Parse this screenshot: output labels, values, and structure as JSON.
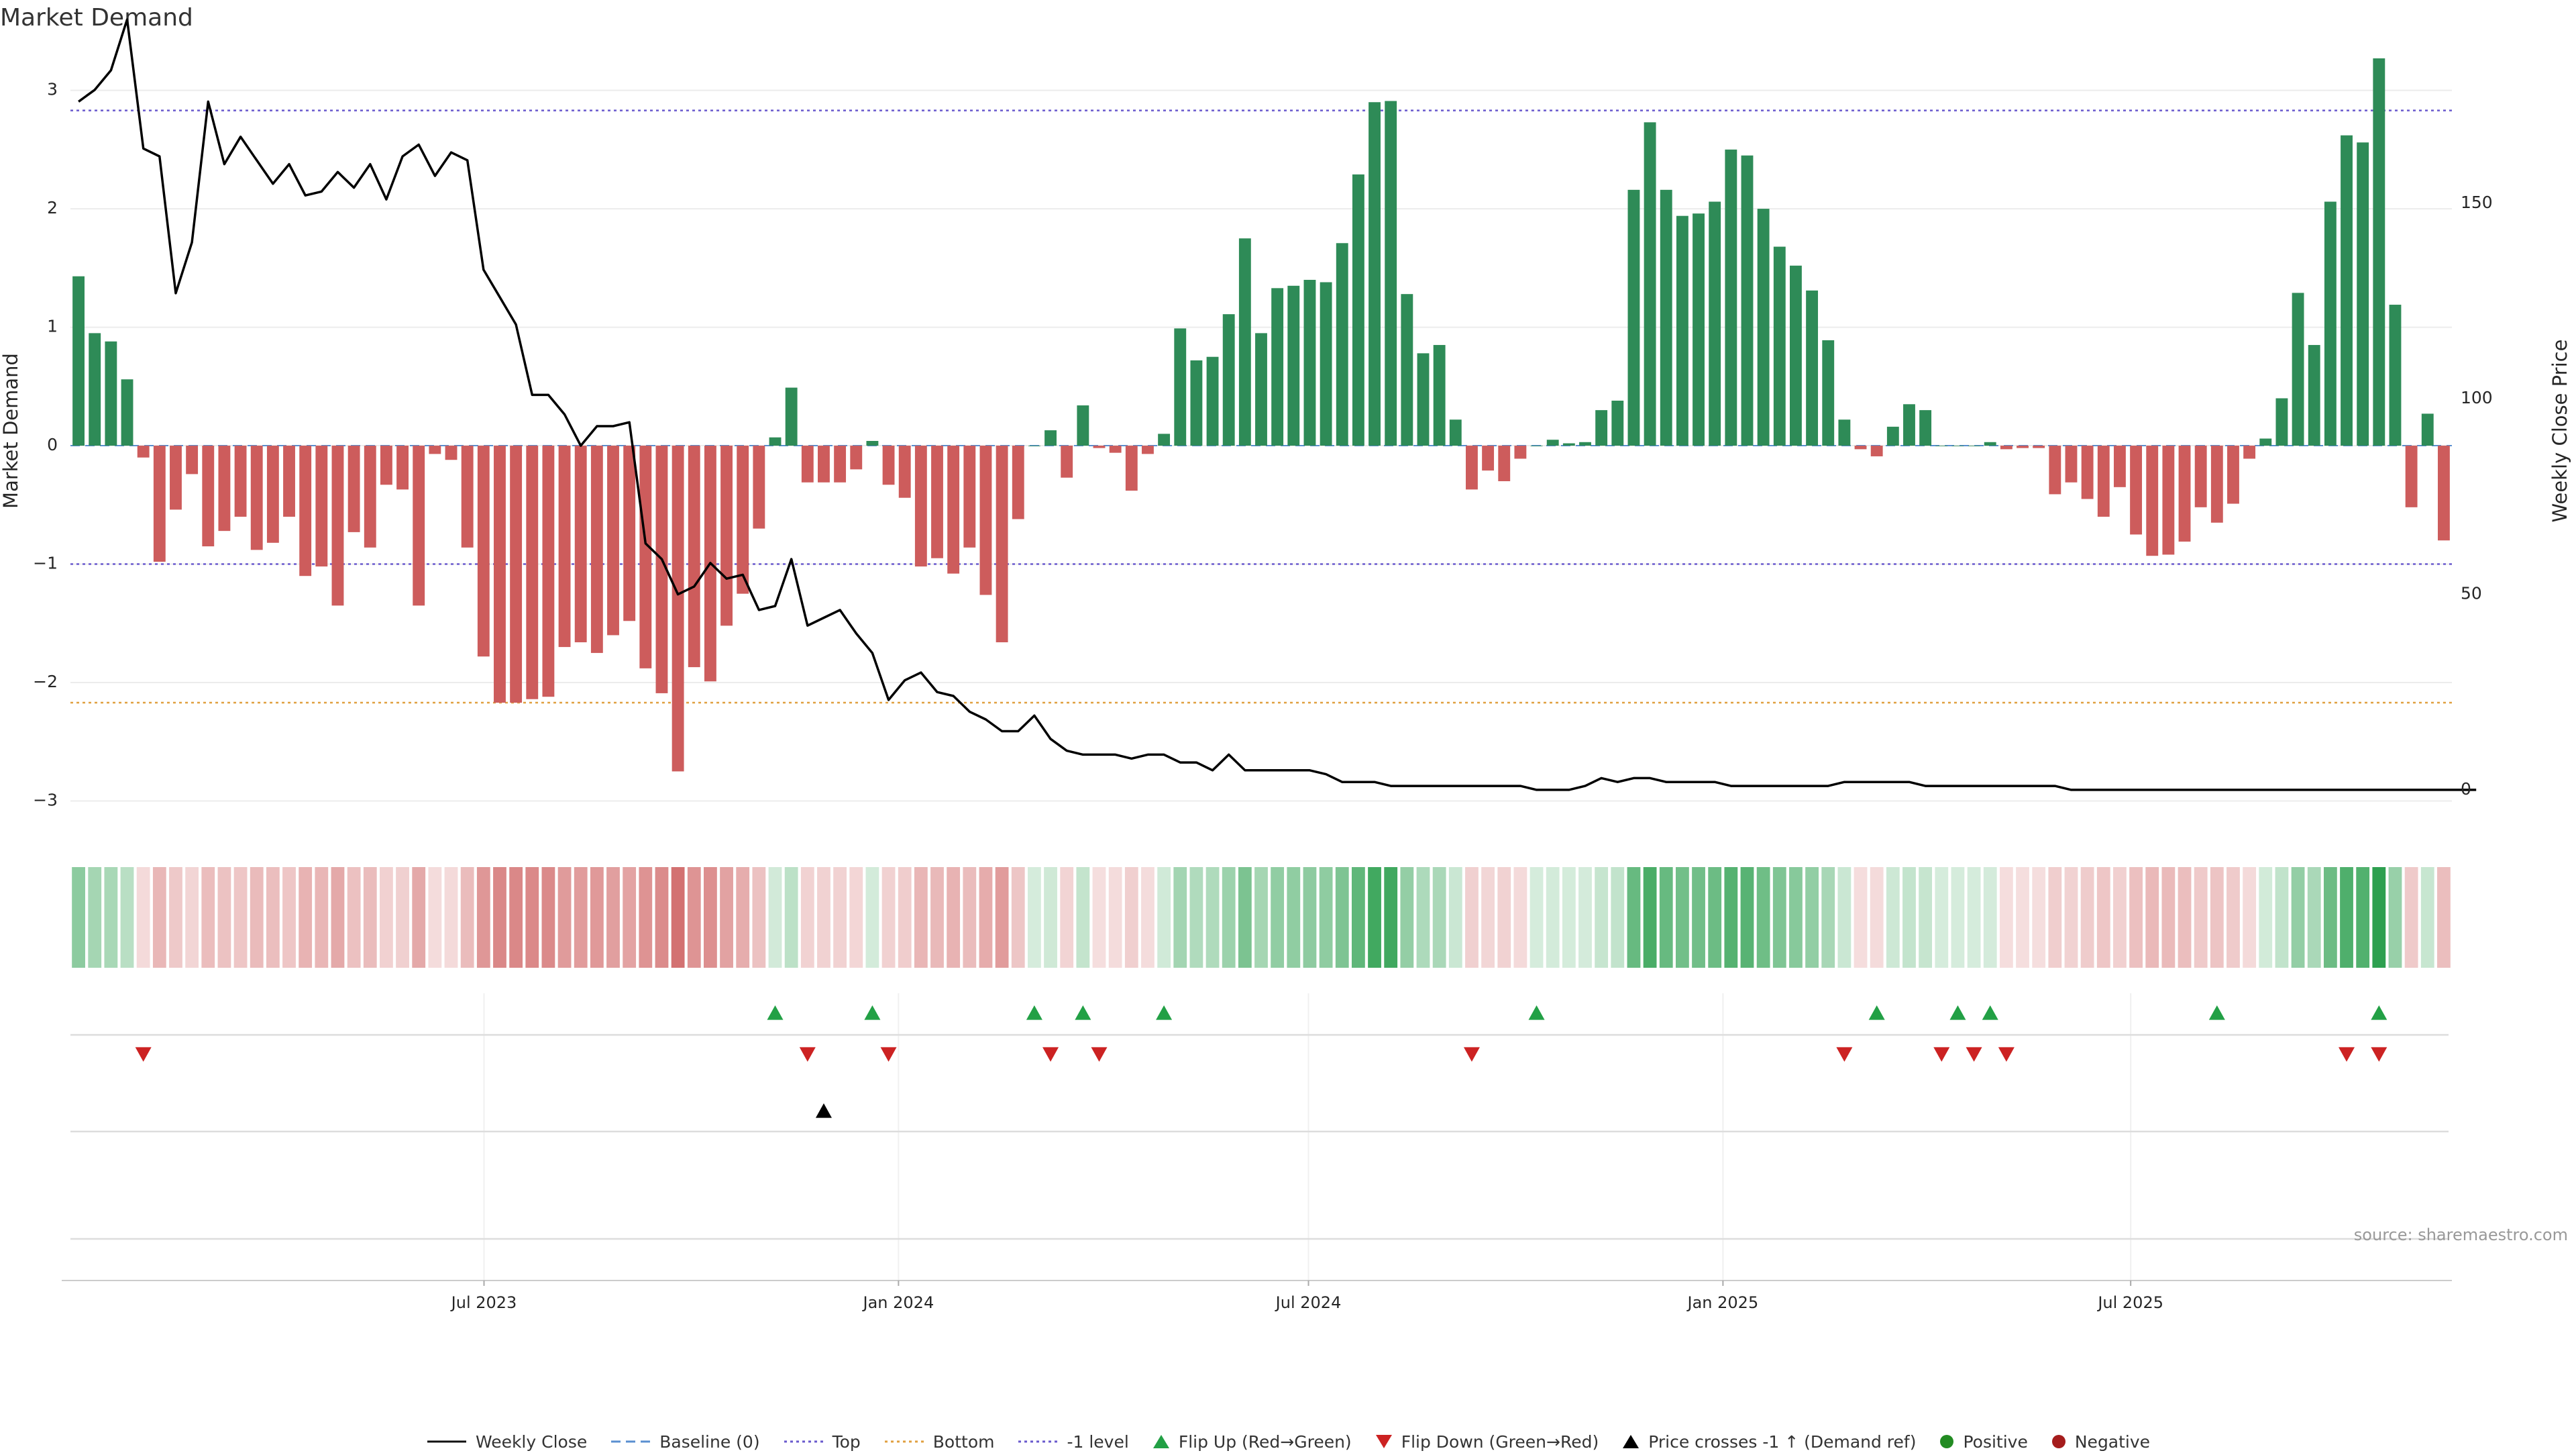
{
  "title": "Market Demand",
  "source": "source: sharemaestro.com",
  "colors": {
    "positive_bar": "#2e8b57",
    "negative_bar": "#cd5c5c",
    "price_line": "#000000",
    "top_line": "#6a5acd",
    "bottom_line": "#e0a040",
    "minus1_line": "#6a5acd",
    "flip_up": "#22a045",
    "flip_down": "#cc2222",
    "cross": "#000000"
  },
  "chart_data": {
    "type": "bar",
    "title": "Market Demand",
    "ylabel": "Market Demand",
    "y2label": "Weekly Close Price",
    "ylim": [
      -3.15,
      3.4
    ],
    "yticks": [
      3,
      2,
      1,
      0,
      -1,
      -2,
      -3
    ],
    "ytick_labels": [
      "3",
      "2",
      "1",
      "0",
      "−1",
      "−2",
      "−3"
    ],
    "y2lim": [
      -7.4,
      191
    ],
    "y2ticks": [
      0,
      50,
      100,
      150
    ],
    "y2tick_labels": [
      "0",
      "50",
      "100",
      "150"
    ],
    "x_axis": {
      "start": "2023-01-02",
      "end": "2025-11-17",
      "tick_dates": [
        "2023-07-01",
        "2024-01-01",
        "2024-07-01",
        "2025-01-01",
        "2025-07-01"
      ],
      "tick_labels": [
        "Jul 2023",
        "Jan 2024",
        "Jul 2024",
        "Jan 2025",
        "Jul 2025"
      ]
    },
    "reference_lines": {
      "top": 2.83,
      "bottom": -2.17,
      "minus_one": -1,
      "baseline": 0
    },
    "demand": [
      1.43,
      0.95,
      0.88,
      0.56,
      -0.1,
      -0.98,
      -0.54,
      -0.24,
      -0.85,
      -0.72,
      -0.6,
      -0.88,
      -0.82,
      -0.6,
      -1.1,
      -1.02,
      -1.35,
      -0.73,
      -0.86,
      -0.33,
      -0.37,
      -1.35,
      -0.07,
      -0.12,
      -0.86,
      -1.78,
      -2.17,
      -2.17,
      -2.14,
      -2.12,
      -1.7,
      -1.66,
      -1.75,
      -1.6,
      -1.48,
      -1.88,
      -2.09,
      -2.75,
      -1.87,
      -1.99,
      -1.52,
      -1.25,
      -0.7,
      0.07,
      0.49,
      -0.31,
      -0.31,
      -0.31,
      -0.2,
      0.04,
      -0.33,
      -0.44,
      -1.02,
      -0.95,
      -1.08,
      -0.86,
      -1.26,
      -1.66,
      -0.62,
      0.0,
      0.13,
      -0.27,
      0.34,
      -0.02,
      -0.06,
      -0.38,
      -0.07,
      0.1,
      0.99,
      0.72,
      0.75,
      1.11,
      1.75,
      0.95,
      1.33,
      1.35,
      1.4,
      1.38,
      1.71,
      2.29,
      2.9,
      2.91,
      1.28,
      0.78,
      0.85,
      0.22,
      -0.37,
      -0.21,
      -0.3,
      -0.11,
      0.0,
      0.05,
      0.02,
      0.03,
      0.3,
      0.38,
      2.16,
      2.73,
      2.16,
      1.94,
      1.96,
      2.06,
      2.5,
      2.45,
      2.0,
      1.68,
      1.52,
      1.31,
      0.89,
      0.22,
      -0.03,
      -0.09,
      0.16,
      0.35,
      0.3,
      0.0,
      0.0,
      0.0,
      0.03,
      -0.03,
      -0.02,
      -0.02,
      -0.41,
      -0.31,
      -0.45,
      -0.6,
      -0.35,
      -0.75,
      -0.93,
      -0.92,
      -0.81,
      -0.52,
      -0.65,
      -0.49,
      -0.11,
      0.06,
      0.4,
      1.29,
      0.85,
      2.06,
      2.62,
      2.56,
      3.27,
      1.19,
      -0.52,
      0.27,
      -0.8
    ],
    "weekly_close": [
      176,
      179,
      184,
      197,
      164,
      162,
      127,
      140,
      176,
      160,
      167,
      161,
      155,
      160,
      152,
      153,
      158,
      154,
      160,
      151,
      162,
      165,
      157,
      163,
      161,
      133,
      126,
      119,
      101,
      101,
      96,
      88,
      93,
      93,
      94,
      63,
      59,
      50,
      52,
      58,
      54,
      55,
      46,
      47,
      59,
      42,
      44,
      46,
      40,
      35,
      23,
      28,
      30,
      25,
      24,
      20,
      18,
      15,
      15,
      19,
      13,
      10,
      9,
      9,
      9,
      8,
      9,
      9,
      7,
      7,
      5,
      9,
      5,
      5,
      5,
      5,
      5,
      4,
      2,
      2,
      2,
      1,
      1,
      1,
      1,
      1,
      1,
      1,
      1,
      1,
      0,
      0,
      0,
      1,
      3,
      2,
      3,
      3,
      2,
      2,
      2,
      2,
      1,
      1,
      1,
      1,
      1,
      1,
      1,
      2,
      2,
      2,
      2,
      2,
      1,
      1,
      1,
      1,
      1,
      1,
      1,
      1,
      1,
      0,
      0,
      0,
      0,
      0,
      0,
      0,
      0,
      0,
      0,
      0,
      0,
      0,
      0,
      0,
      0,
      0,
      0,
      0,
      0,
      0,
      0,
      0,
      0,
      0,
      0
    ],
    "series": [
      {
        "name": "Market Demand",
        "type": "bar"
      },
      {
        "name": "Weekly Close",
        "type": "line",
        "axis": "right"
      }
    ],
    "flip_up_weeks": [
      43,
      49,
      59,
      62,
      67,
      90,
      111,
      116,
      118,
      132,
      142
    ],
    "flip_down_weeks": [
      4,
      45,
      50,
      60,
      63,
      86,
      109,
      115,
      117,
      119,
      140,
      142
    ],
    "price_cross_weeks": [
      46
    ]
  },
  "legend": [
    {
      "label": "Weekly Close",
      "kind": "line-solid"
    },
    {
      "label": "Baseline (0)",
      "kind": "line-dashed"
    },
    {
      "label": "Top",
      "kind": "line-dotted-top"
    },
    {
      "label": "Bottom",
      "kind": "line-dotted-bottom"
    },
    {
      "label": "-1 level",
      "kind": "line-dotted-minus1"
    },
    {
      "label": "Flip Up (Red→Green)",
      "kind": "triangle-up-green"
    },
    {
      "label": "Flip Down (Green→Red)",
      "kind": "triangle-down-red"
    },
    {
      "label": "Price crosses -1 ↑ (Demand ref)",
      "kind": "triangle-up-black"
    },
    {
      "label": "Positive",
      "kind": "dot-green"
    },
    {
      "label": "Negative",
      "kind": "dot-red"
    }
  ]
}
